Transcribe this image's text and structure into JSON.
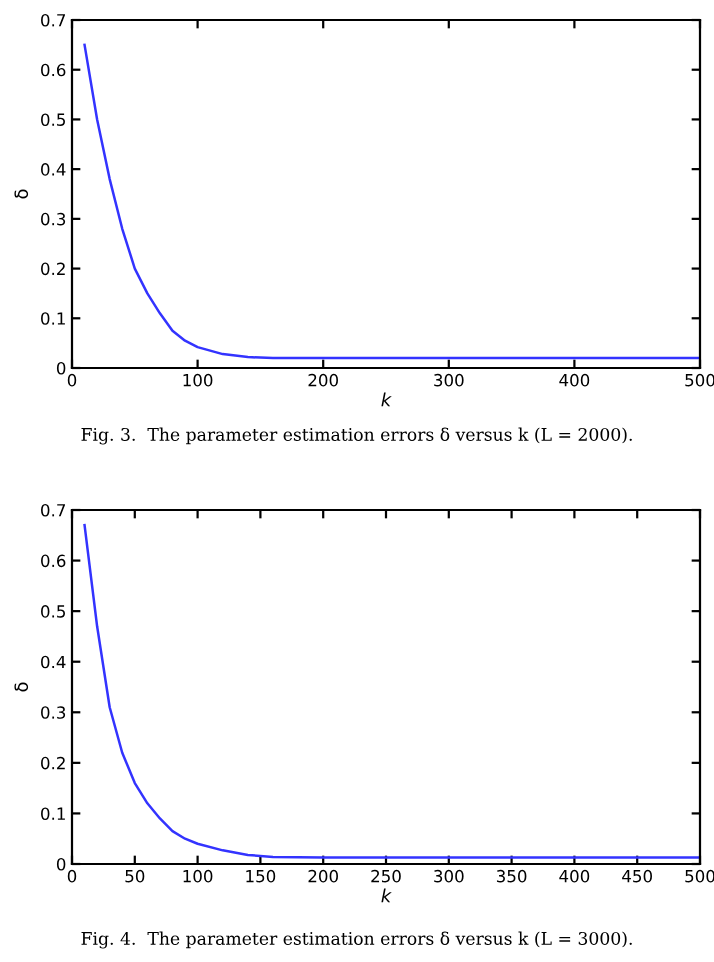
{
  "chart_data": [
    {
      "type": "line",
      "xlabel": "k",
      "ylabel": "δ",
      "annotations": [
        "Fig. 3.  The parameter estimation errors δ versus k (L = 2000)."
      ],
      "xlim": [
        0,
        500
      ],
      "ylim": [
        0,
        0.7
      ],
      "xticks": [
        0,
        100,
        200,
        300,
        400,
        500
      ],
      "yticks": [
        0,
        0.1,
        0.2,
        0.3,
        0.4,
        0.5,
        0.6,
        0.7
      ],
      "grid": false,
      "legend": false,
      "series": [
        {
          "color": "#3333ff",
          "x": [
            10,
            20,
            30,
            40,
            50,
            60,
            70,
            80,
            90,
            100,
            120,
            140,
            160,
            200,
            300,
            400,
            500
          ],
          "values": [
            0.65,
            0.5,
            0.38,
            0.28,
            0.2,
            0.15,
            0.11,
            0.075,
            0.055,
            0.042,
            0.028,
            0.022,
            0.02,
            0.02,
            0.02,
            0.02,
            0.02
          ]
        }
      ]
    },
    {
      "type": "line",
      "xlabel": "k",
      "ylabel": "δ",
      "annotations": [
        "Fig. 4.  The parameter estimation errors δ versus k (L = 3000)."
      ],
      "xlim": [
        0,
        500
      ],
      "ylim": [
        0,
        0.7
      ],
      "xticks": [
        0,
        50,
        100,
        150,
        200,
        250,
        300,
        350,
        400,
        450,
        500
      ],
      "yticks": [
        0,
        0.1,
        0.2,
        0.3,
        0.4,
        0.5,
        0.6,
        0.7
      ],
      "grid": false,
      "legend": false,
      "series": [
        {
          "color": "#3333ff",
          "x": [
            10,
            20,
            30,
            40,
            50,
            60,
            70,
            80,
            90,
            100,
            120,
            140,
            160,
            200,
            300,
            400,
            500
          ],
          "values": [
            0.67,
            0.47,
            0.31,
            0.22,
            0.16,
            0.12,
            0.09,
            0.065,
            0.05,
            0.04,
            0.027,
            0.018,
            0.014,
            0.013,
            0.013,
            0.013,
            0.013
          ]
        }
      ]
    }
  ]
}
